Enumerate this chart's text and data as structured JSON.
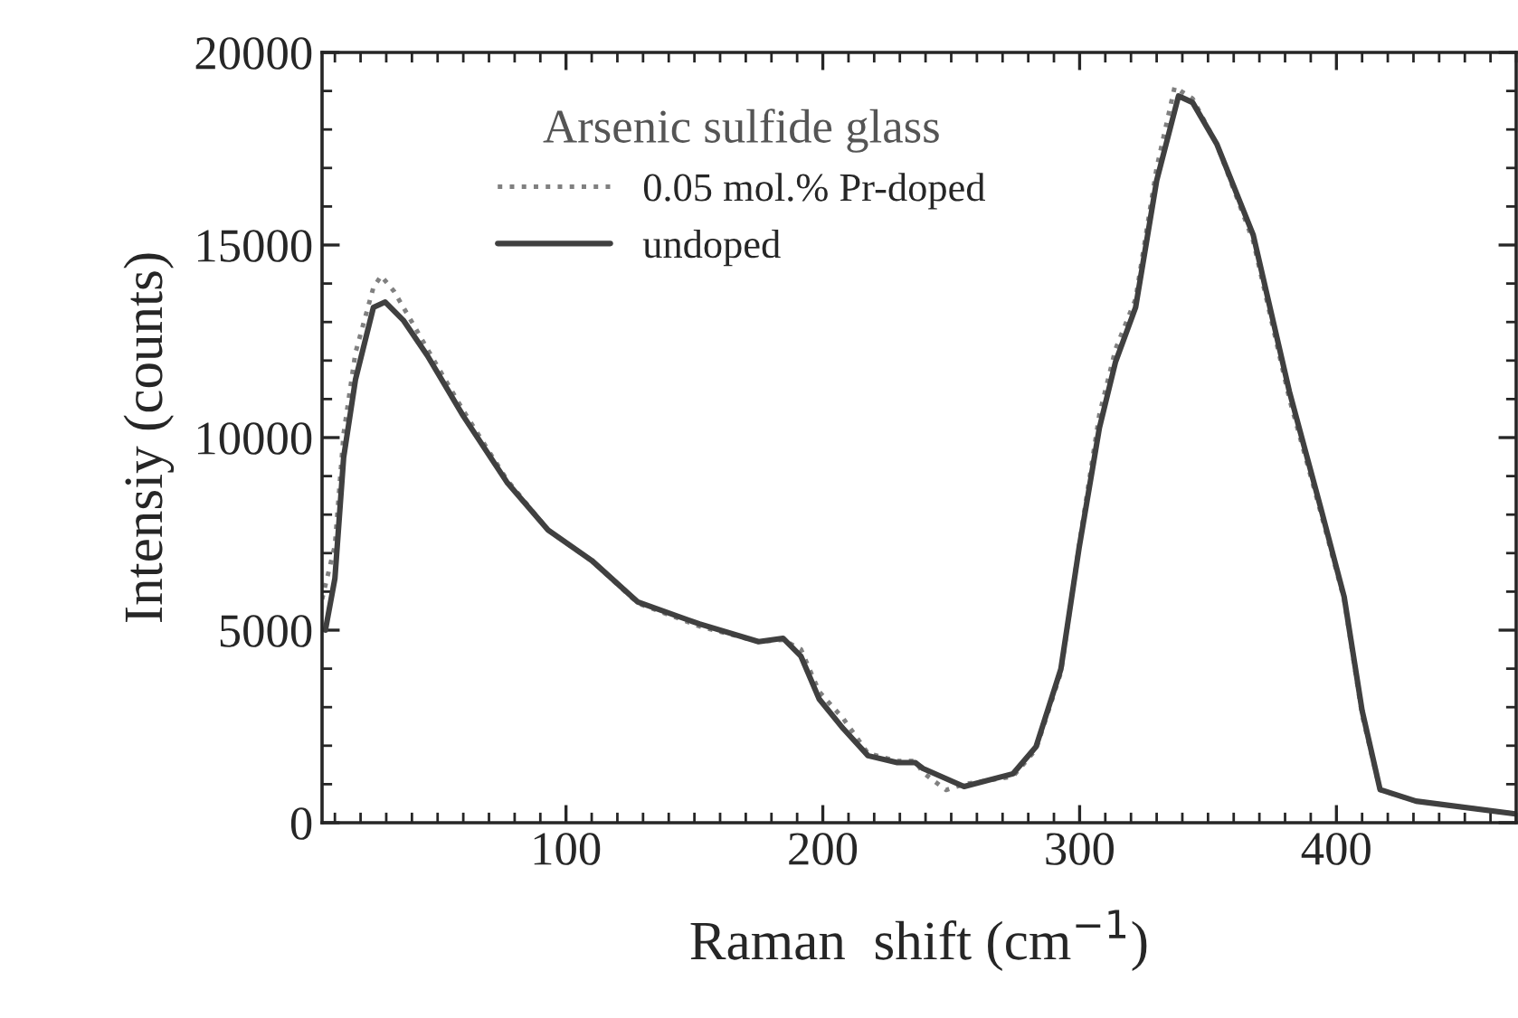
{
  "chart_data": {
    "type": "line",
    "xlabel": "Raman  shift (cm$^{−1}$)",
    "ylabel": "Intensiy (counts)",
    "legend_title": "Arsenic sulfide glass",
    "legend": "top left",
    "grid": false,
    "xlim": [
      5,
      470
    ],
    "xticks": [
      100,
      200,
      300,
      400
    ],
    "ylim": [
      0,
      20000
    ],
    "yticks": [
      0,
      5000,
      10000,
      15000,
      20000
    ],
    "series": [
      {
        "name": "0.05 mol.% Pr-doped",
        "color": "#808080",
        "line_style": "dotted",
        "x": [
          5,
          10,
          13.4,
          18,
          25,
          28,
          33,
          40,
          46,
          60,
          77,
          93,
          110,
          128,
          152,
          175,
          184.5,
          191.5,
          198.6,
          208,
          217.6,
          229,
          236,
          239,
          248,
          255,
          274,
          283,
          292.7,
          299.8,
          307.7,
          314,
          321.8,
          330,
          337,
          344,
          353.5,
          367.6,
          381.7,
          393.7,
          403,
          410,
          417,
          431,
          469.7
        ],
        "values": [
          5800,
          7200,
          10100,
          12200,
          13900,
          14200,
          13800,
          13000,
          12300,
          10700,
          8900,
          7600,
          6800,
          5700,
          5100,
          4700,
          4750,
          4500,
          3400,
          2700,
          1800,
          1600,
          1600,
          1300,
          850,
          1000,
          1200,
          1900,
          3900,
          7200,
          10600,
          12300,
          13600,
          17000,
          19100,
          18800,
          17600,
          15100,
          11000,
          8100,
          5800,
          2800,
          850,
          560,
          230
        ]
      },
      {
        "name": "undoped",
        "color": "#404040",
        "line_style": "solid",
        "x": [
          6.3,
          10,
          13.4,
          18,
          25,
          29.6,
          36.6,
          46,
          60,
          77,
          93,
          110,
          128,
          152,
          175,
          184.5,
          191.5,
          198.6,
          208,
          217.6,
          229,
          236,
          239,
          255,
          274,
          283,
          292.7,
          299.8,
          307.7,
          314,
          321.8,
          330,
          338.5,
          344,
          353.5,
          367.6,
          381.7,
          393.7,
          403,
          410,
          417,
          431,
          469.7
        ],
        "values": [
          5000,
          6340,
          9480,
          11500,
          13380,
          13520,
          13050,
          12130,
          10560,
          8840,
          7600,
          6810,
          5730,
          5160,
          4700,
          4790,
          4320,
          3210,
          2440,
          1740,
          1560,
          1560,
          1410,
          940,
          1270,
          1970,
          3990,
          7140,
          10250,
          11970,
          13380,
          16670,
          18870,
          18700,
          17610,
          15260,
          11190,
          8220,
          5870,
          2910,
          860,
          560,
          230
        ]
      }
    ]
  }
}
